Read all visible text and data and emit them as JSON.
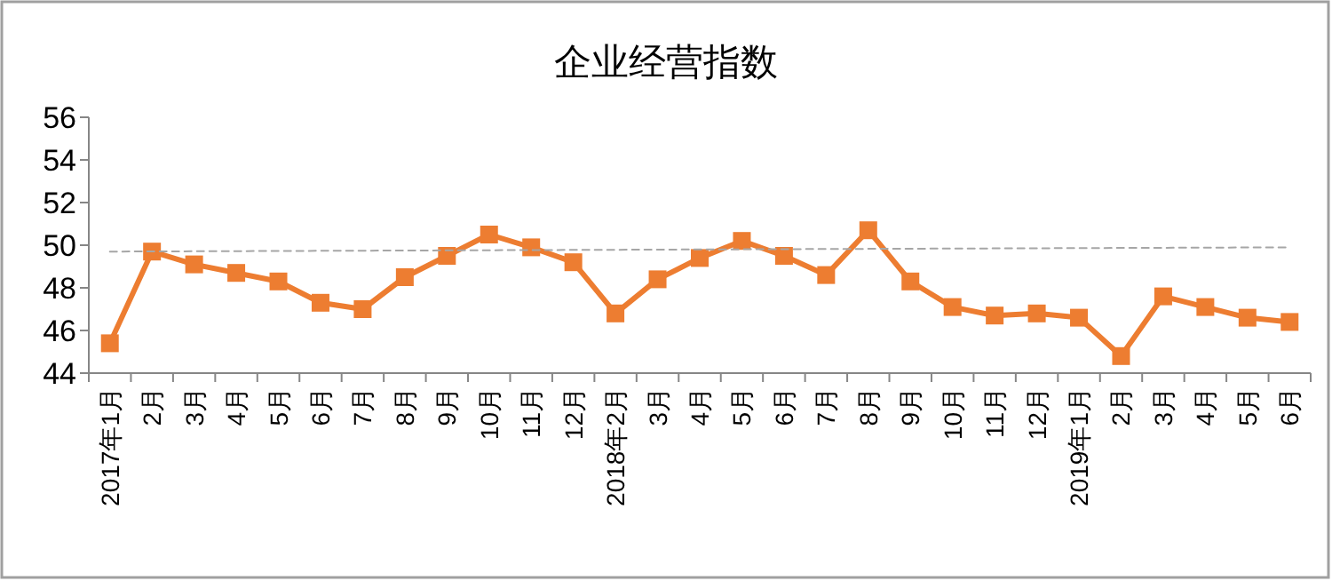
{
  "chart_data": {
    "type": "line",
    "title": "企业经营指数",
    "categories": [
      "2017年1月",
      "2月",
      "3月",
      "4月",
      "5月",
      "6月",
      "7月",
      "8月",
      "9月",
      "10月",
      "11月",
      "12月",
      "2018年2月",
      "3月",
      "4月",
      "5月",
      "6月",
      "7月",
      "8月",
      "9月",
      "10月",
      "11月",
      "12月",
      "2019年1月",
      "2月",
      "3月",
      "4月",
      "5月",
      "6月"
    ],
    "series": [
      {
        "color": "#ed7d31",
        "marker": "square",
        "line_style": "solid",
        "values": [
          45.4,
          49.7,
          49.1,
          48.7,
          48.3,
          47.3,
          47.0,
          48.5,
          49.5,
          50.5,
          49.9,
          49.2,
          46.8,
          48.4,
          49.4,
          50.2,
          49.5,
          48.6,
          50.7,
          48.3,
          47.1,
          46.7,
          46.8,
          46.6,
          44.8,
          47.6,
          47.1,
          46.6,
          46.4
        ]
      },
      {
        "color": "#a6a6a6",
        "marker": "none",
        "line_style": "dashed",
        "values": [
          49.7,
          null,
          null,
          null,
          null,
          null,
          null,
          null,
          null,
          null,
          null,
          null,
          null,
          null,
          null,
          null,
          null,
          null,
          null,
          null,
          null,
          null,
          null,
          null,
          null,
          null,
          null,
          null,
          49.9
        ]
      }
    ],
    "ylim": [
      44,
      56
    ],
    "yticks": [
      44,
      46,
      48,
      50,
      52,
      54,
      56
    ],
    "grid": false
  }
}
